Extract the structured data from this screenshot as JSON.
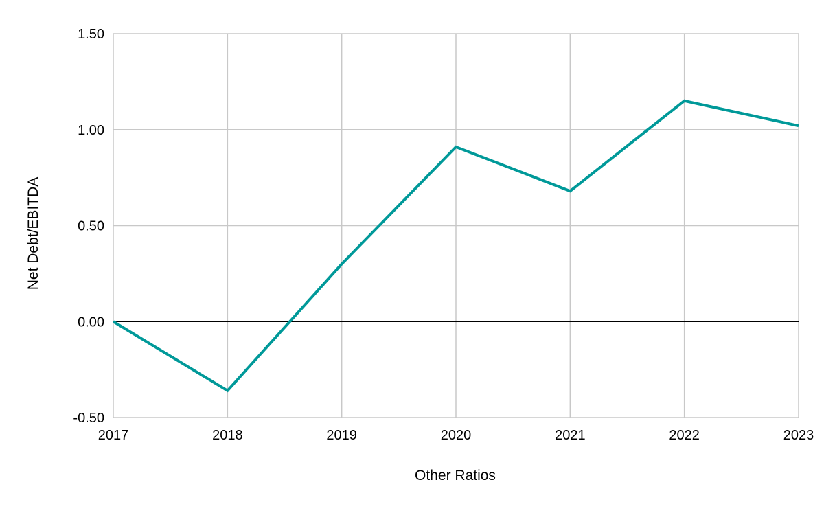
{
  "chart_data": {
    "type": "line",
    "title": "",
    "xlabel": "Other Ratios",
    "ylabel": "Net Debt/EBITDA",
    "x": [
      "2017",
      "2018",
      "2019",
      "2020",
      "2021",
      "2022",
      "2023"
    ],
    "series": [
      {
        "values": [
          0.0,
          -0.36,
          0.3,
          0.91,
          0.68,
          1.15,
          1.02
        ],
        "color": "#009999"
      }
    ],
    "ylim": [
      -0.5,
      1.5
    ],
    "yticks": [
      -0.5,
      0.0,
      0.5,
      1.0,
      1.5
    ],
    "ytick_labels": [
      "-0.50",
      "0.00",
      "0.50",
      "1.00",
      "1.50"
    ],
    "grid": true,
    "grid_color": "#c8c8c8",
    "zero_line_color": "#000000",
    "legend": "none"
  }
}
